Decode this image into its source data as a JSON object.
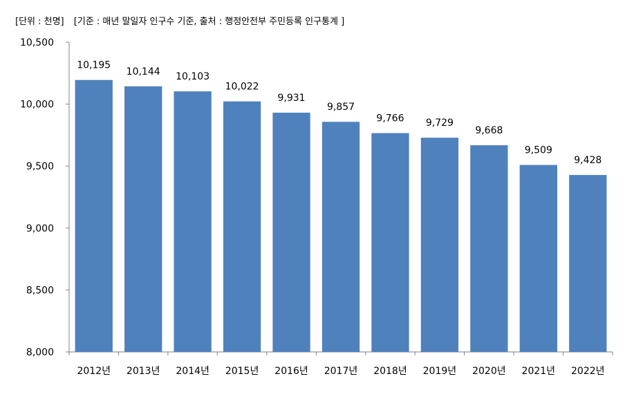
{
  "header": {
    "unit_note": "[단위 : 천명]",
    "source_note": "[기준 : 매년 말일자 인구수 기준, 출처 : 행정안전부 주민등록 인구통계 ]"
  },
  "chart_data": {
    "type": "bar",
    "categories": [
      "2012년",
      "2013년",
      "2014년",
      "2015년",
      "2016년",
      "2017년",
      "2018년",
      "2019년",
      "2020년",
      "2021년",
      "2022년"
    ],
    "values": [
      10195,
      10144,
      10103,
      10022,
      9931,
      9857,
      9766,
      9729,
      9668,
      9509,
      9428
    ],
    "data_labels": [
      "10,195",
      "10,144",
      "10,103",
      "10,022",
      "9,931",
      "9,857",
      "9,766",
      "9,729",
      "9,668",
      "9,509",
      "9,428"
    ],
    "ylim": [
      8000,
      10500
    ],
    "yticks": [
      8000,
      8500,
      9000,
      9500,
      10000,
      10500
    ],
    "ytick_labels": [
      "8,000",
      "8,500",
      "9,000",
      "9,500",
      "10,000",
      "10,500"
    ],
    "bar_color": "#4f81bd",
    "axis_color": "#7f7f7f",
    "grid": false,
    "legend": false
  }
}
